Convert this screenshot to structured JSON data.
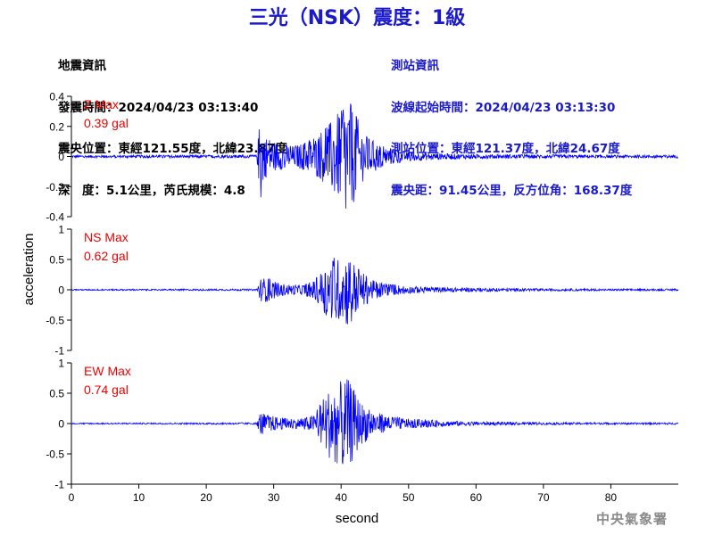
{
  "title": "三光（NSK）震度：1級",
  "earthquake_info": {
    "heading": "地震資訊",
    "lines": [
      "發震時間：2024/04/23 03:13:40",
      "震央位置：東經121.55度，北緯23.87度",
      "深　度：5.1公里，芮氏規模：4.8"
    ]
  },
  "station_info": {
    "heading": "測站資訊",
    "lines": [
      "波線起始時間：2024/04/23 03:13:30",
      "測站位置：東經121.37度，北緯24.67度",
      "震央距：91.45公里，反方位角：168.37度"
    ]
  },
  "footer": "中央氣象署",
  "colors": {
    "title": "#1a1acc",
    "station_text": "#1a1acc",
    "trace": "#0000ff",
    "max_label": "#ee0000",
    "axis": "#000000"
  },
  "chart_data": {
    "type": "line",
    "xlabel": "second",
    "ylabel": "acceleration",
    "xlim": [
      0,
      90
    ],
    "xticks": [
      0,
      10,
      20,
      30,
      40,
      50,
      60,
      70,
      80
    ],
    "panels": [
      {
        "name": "Z",
        "max_label": "Z Max",
        "max_value": "0.39 gal",
        "ylim": [
          -0.4,
          0.4
        ],
        "yticks": [
          -0.4,
          -0.2,
          0,
          0.2,
          0.4
        ],
        "ytick_labels": [
          "-0.4",
          "-0.2",
          "0",
          "0.2",
          "0.4"
        ],
        "envelope": {
          "x": [
            0,
            27.5,
            28,
            28.5,
            30,
            33,
            36,
            38,
            39,
            40,
            41,
            42,
            43,
            44,
            46,
            48,
            50,
            55,
            60,
            70,
            80,
            90
          ],
          "amp": [
            0.008,
            0.01,
            0.3,
            0.15,
            0.1,
            0.07,
            0.12,
            0.2,
            0.28,
            0.3,
            0.39,
            0.3,
            0.2,
            0.13,
            0.07,
            0.05,
            0.03,
            0.02,
            0.015,
            0.012,
            0.01,
            0.01
          ]
        }
      },
      {
        "name": "NS",
        "max_label": "NS Max",
        "max_value": "0.62 gal",
        "ylim": [
          -1,
          1
        ],
        "yticks": [
          -1,
          -0.5,
          0,
          0.5,
          1
        ],
        "ytick_labels": [
          "-1",
          "-0.5",
          "0",
          "0.5",
          "1"
        ],
        "envelope": {
          "x": [
            0,
            27.5,
            28,
            29,
            31,
            34,
            36,
            38,
            39,
            40,
            41,
            42,
            43,
            45,
            47,
            50,
            55,
            60,
            70,
            80,
            90
          ],
          "amp": [
            0.01,
            0.015,
            0.2,
            0.2,
            0.1,
            0.08,
            0.15,
            0.45,
            0.55,
            0.5,
            0.62,
            0.45,
            0.3,
            0.15,
            0.1,
            0.06,
            0.04,
            0.03,
            0.02,
            0.015,
            0.015
          ]
        }
      },
      {
        "name": "EW",
        "max_label": "EW Max",
        "max_value": "0.74 gal",
        "ylim": [
          -1,
          1
        ],
        "yticks": [
          -1,
          -0.5,
          0,
          0.5,
          1
        ],
        "ytick_labels": [
          "-1",
          "-0.5",
          "0",
          "0.5",
          "1"
        ],
        "envelope": {
          "x": [
            0,
            27.5,
            28,
            29,
            31,
            34,
            36,
            38,
            39,
            40,
            41,
            42,
            43,
            45,
            47,
            50,
            55,
            60,
            70,
            80,
            90
          ],
          "amp": [
            0.01,
            0.015,
            0.2,
            0.15,
            0.1,
            0.08,
            0.15,
            0.55,
            0.65,
            0.7,
            0.74,
            0.55,
            0.35,
            0.2,
            0.12,
            0.08,
            0.05,
            0.03,
            0.02,
            0.015,
            0.015
          ]
        }
      }
    ]
  }
}
